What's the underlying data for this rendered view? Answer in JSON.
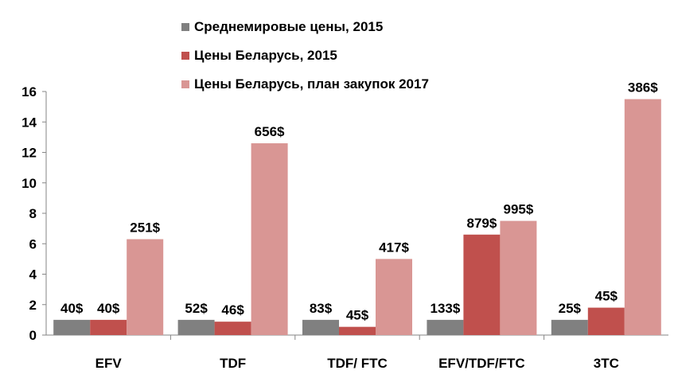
{
  "chart_data": {
    "type": "bar",
    "categories": [
      "EFV",
      "TDF",
      "TDF/ FTC",
      "EFV/TDF/FTC",
      "3TC"
    ],
    "series": [
      {
        "name": "Среднемировые цены, 2015",
        "color": "#808080",
        "values": [
          1,
          1,
          1,
          1,
          1
        ],
        "labels": [
          "40$",
          "52$",
          "83$",
          "133$",
          "25$"
        ]
      },
      {
        "name": "Цены Беларусь, 2015",
        "color": "#c0504d",
        "values": [
          1,
          0.88,
          0.54,
          6.6,
          1.8
        ],
        "labels": [
          "40$",
          "46$",
          "45$",
          "879$",
          "45$"
        ]
      },
      {
        "name": "Цены Беларусь, план закупок 2017",
        "color": "#d99694",
        "values": [
          6.3,
          12.6,
          5.0,
          7.5,
          15.5
        ],
        "labels": [
          "251$",
          "656$",
          "417$",
          "995$",
          "386$"
        ]
      }
    ],
    "yticks": [
      "0",
      "2",
      "4",
      "6",
      "8",
      "10",
      "12",
      "14",
      "16"
    ],
    "ylim": [
      0,
      16
    ],
    "grid": false,
    "legend": "top-center"
  }
}
